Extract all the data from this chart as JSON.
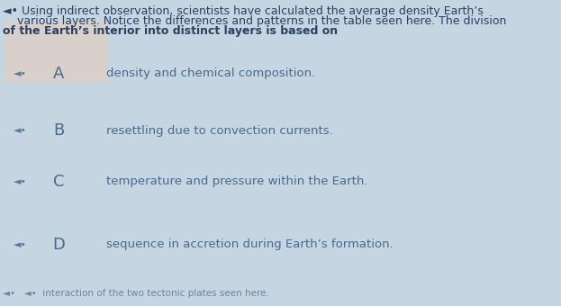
{
  "bg_color": "#c5d5e2",
  "panel_a_color": "#ddd0c8",
  "text_color": "#4a6a8a",
  "text_color_dark": "#2a4060",
  "speaker_color": "#8aaa bb",
  "question_line1": "◄• Using indirect observation, scientists have calculated the average density Earth’s",
  "question_line2": "    various layers. Notice the differences and patterns in the table seen here. The division",
  "question_line3": "of the Earth’s interior into distinct layers is based on",
  "options": [
    {
      "label": "A",
      "text": "density and chemical composition."
    },
    {
      "label": "B",
      "text": "resettling due to convection currents."
    },
    {
      "label": "C",
      "text": "temperature and pressure within the Earth."
    },
    {
      "label": "D",
      "text": "sequence in accretion during Earth’s formation."
    }
  ],
  "footer_prefix": "◄•   ◄•",
  "footer_text": "  interaction of the two tectonic plates seen here.",
  "q_fontsize": 9.0,
  "label_fontsize": 13,
  "answer_fontsize": 9.5,
  "speaker_fontsize": 8,
  "footer_fontsize": 7.5
}
